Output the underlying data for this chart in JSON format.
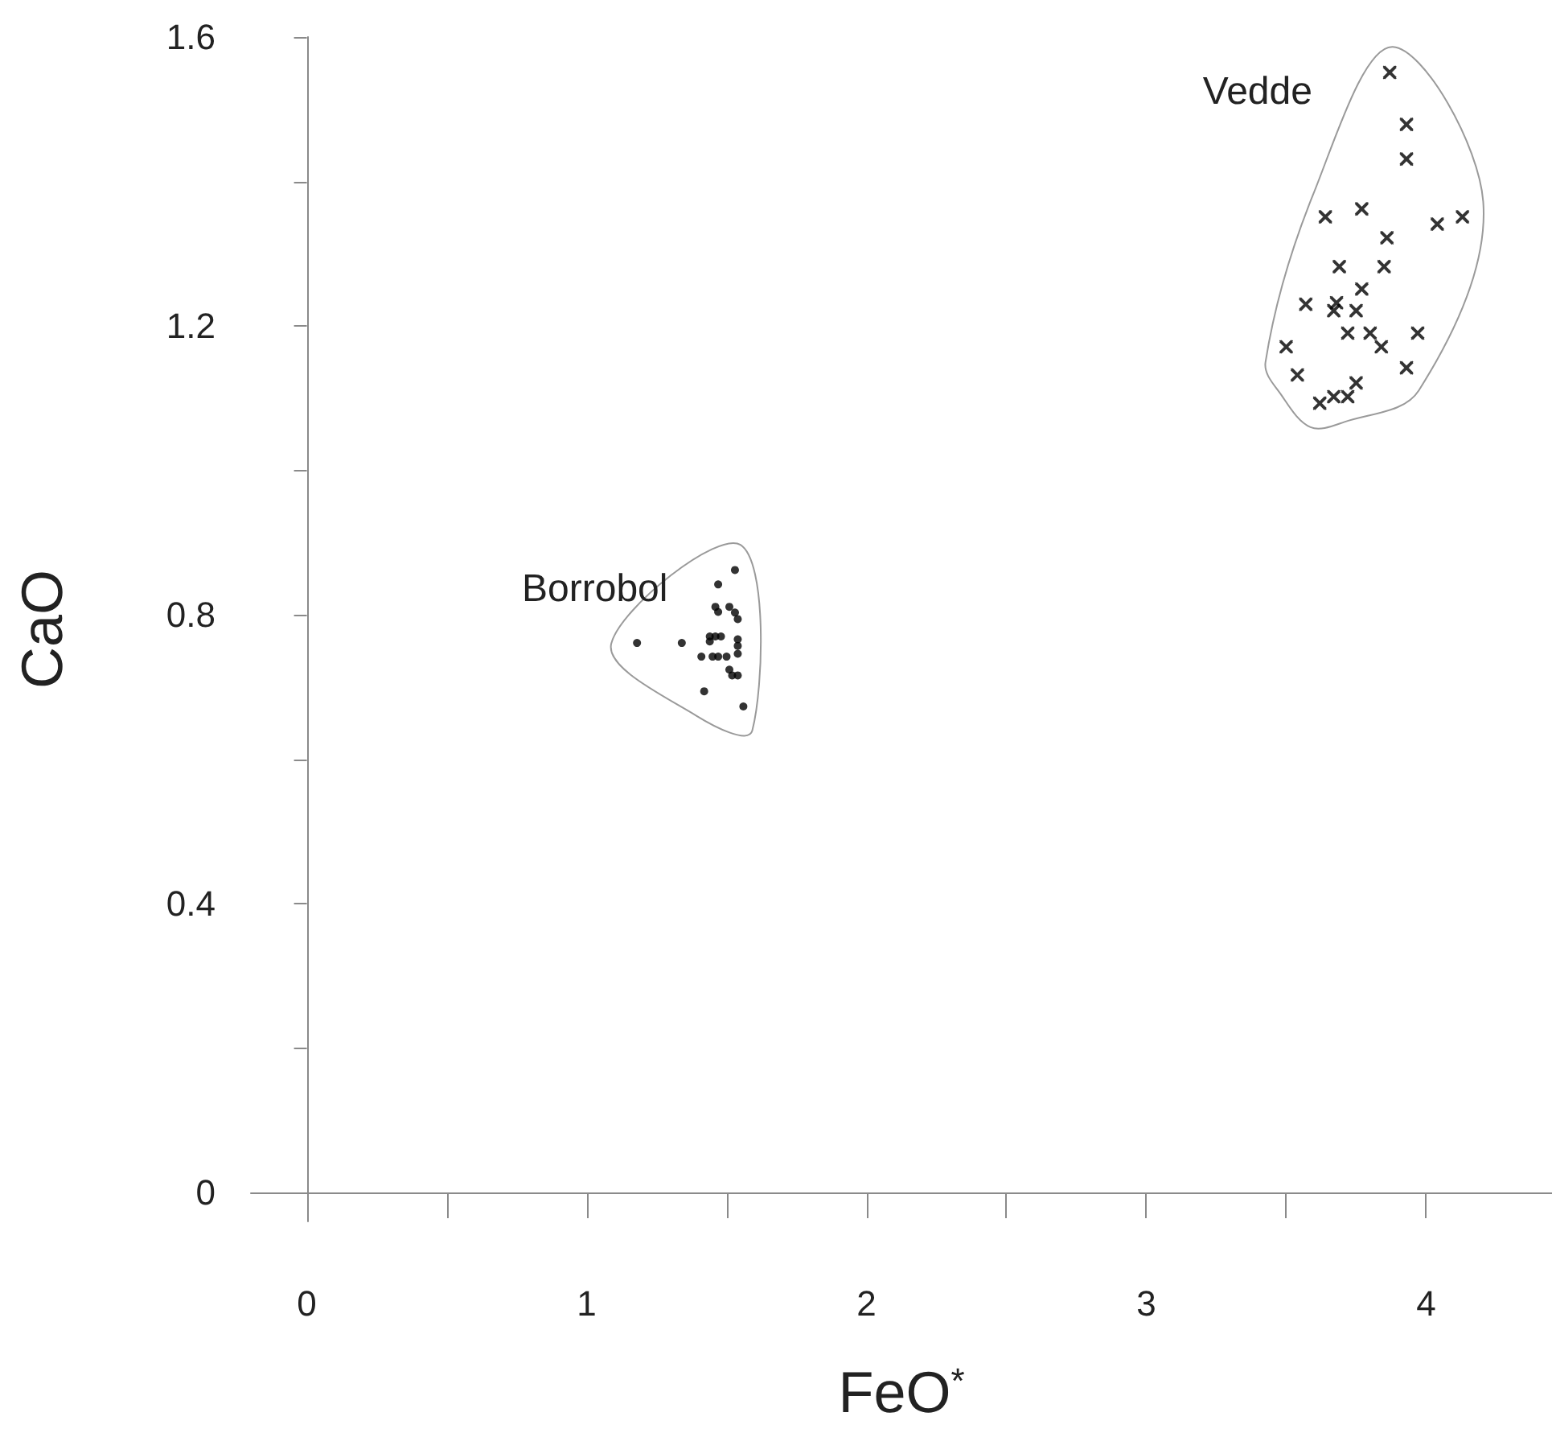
{
  "chart_data": {
    "type": "scatter",
    "xlabel": "FeO$^{*}$",
    "ylabel": "CaO",
    "xlim": [
      -0.2,
      4.45
    ],
    "ylim": [
      -0.04,
      1.6
    ],
    "xticks": [
      0,
      {
        "value": 0.5,
        "label": null
      },
      1,
      {
        "value": 1.5,
        "label": null
      },
      2,
      {
        "value": 2.5,
        "label": null
      },
      3,
      {
        "value": 3.5,
        "label": null
      },
      4
    ],
    "yticks": [
      0,
      {
        "value": 0.2,
        "label": null
      },
      0.4,
      {
        "value": 0.6,
        "label": null
      },
      0.8,
      {
        "value": 1.0,
        "label": null
      },
      1.2,
      {
        "value": 1.4,
        "label": null
      },
      1.6
    ],
    "series": [
      {
        "name": "Borrobol",
        "color": "#000000",
        "marker": "circle",
        "x": [
          1.53,
          1.47,
          1.46,
          1.47,
          1.51,
          1.53,
          1.54,
          1.18,
          1.34,
          1.44,
          1.46,
          1.48,
          1.44,
          1.54,
          1.54,
          1.41,
          1.45,
          1.47,
          1.5,
          1.54,
          1.51,
          1.52,
          1.54,
          1.42,
          1.56
        ],
        "values": [
          0.862,
          0.842,
          0.811,
          0.804,
          0.811,
          0.803,
          0.794,
          0.761,
          0.761,
          0.77,
          0.77,
          0.77,
          0.763,
          0.766,
          0.757,
          0.742,
          0.742,
          0.742,
          0.742,
          0.746,
          0.724,
          0.716,
          0.716,
          0.694,
          0.673
        ]
      },
      {
        "name": "Vedde",
        "color": "#000000",
        "marker": "cross",
        "x": [
          3.87,
          3.93,
          3.93,
          3.64,
          3.77,
          4.04,
          4.13,
          3.86,
          3.69,
          3.85,
          3.77,
          3.57,
          3.68,
          3.67,
          3.75,
          3.72,
          3.8,
          3.97,
          3.84,
          3.5,
          3.54,
          3.93,
          3.75,
          3.62,
          3.67,
          3.72
        ],
        "values": [
          1.551,
          1.479,
          1.431,
          1.351,
          1.362,
          1.341,
          1.351,
          1.322,
          1.282,
          1.282,
          1.251,
          1.23,
          1.232,
          1.221,
          1.221,
          1.19,
          1.19,
          1.19,
          1.171,
          1.171,
          1.132,
          1.142,
          1.121,
          1.093,
          1.102,
          1.102
        ]
      }
    ]
  }
}
